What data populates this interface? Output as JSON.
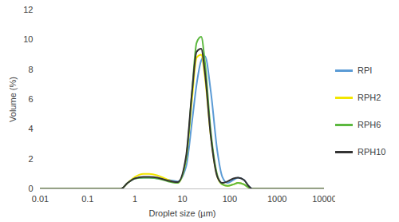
{
  "chart_data": {
    "type": "line",
    "x_label": "Droplet size (µm)",
    "y_label": "Volume (%)",
    "log": "x",
    "grid": false,
    "legend": "right",
    "xlim": [
      0.01,
      10000
    ],
    "xticks": [
      0.01,
      0.1,
      1,
      10,
      100,
      1000,
      10000
    ],
    "ylim": [
      0,
      12
    ],
    "yticks": [
      0,
      2,
      4,
      6,
      8,
      10,
      12
    ],
    "x": [
      0.01,
      0.5,
      0.7,
      1,
      1.5,
      2,
      3,
      5,
      8,
      12,
      16,
      20,
      25,
      30,
      40,
      55,
      70,
      90,
      120,
      150,
      200,
      250,
      300,
      10000
    ],
    "series": [
      {
        "name": "RPI",
        "color": "#5b9bd5",
        "values": [
          0,
          0,
          0.4,
          0.7,
          0.75,
          0.75,
          0.7,
          0.6,
          0.5,
          1.5,
          4.5,
          7.0,
          8.6,
          8.9,
          6.5,
          2.5,
          0.8,
          0.4,
          0.6,
          0.75,
          0.6,
          0.2,
          0,
          0
        ]
      },
      {
        "name": "RPH2",
        "color": "#f2e600",
        "values": [
          0,
          0,
          0.4,
          0.8,
          1.0,
          1.0,
          0.9,
          0.6,
          0.4,
          2.0,
          6.0,
          8.8,
          9.0,
          7.5,
          3.5,
          0.8,
          0.3,
          0.2,
          0.3,
          0.4,
          0.3,
          0.1,
          0,
          0
        ]
      },
      {
        "name": "RPH6",
        "color": "#5cb83f",
        "values": [
          0,
          0,
          0.4,
          0.7,
          0.75,
          0.75,
          0.7,
          0.5,
          0.4,
          2.0,
          6.5,
          9.8,
          10.2,
          8.5,
          3.8,
          0.9,
          0.3,
          0.2,
          0.3,
          0.4,
          0.3,
          0.1,
          0,
          0
        ]
      },
      {
        "name": "RPH10",
        "color": "#333333",
        "values": [
          0,
          0,
          0.4,
          0.7,
          0.8,
          0.8,
          0.75,
          0.55,
          0.45,
          2.2,
          6.5,
          9.2,
          9.4,
          7.8,
          3.5,
          0.8,
          0.4,
          0.5,
          0.7,
          0.75,
          0.6,
          0.2,
          0,
          0
        ]
      }
    ]
  }
}
